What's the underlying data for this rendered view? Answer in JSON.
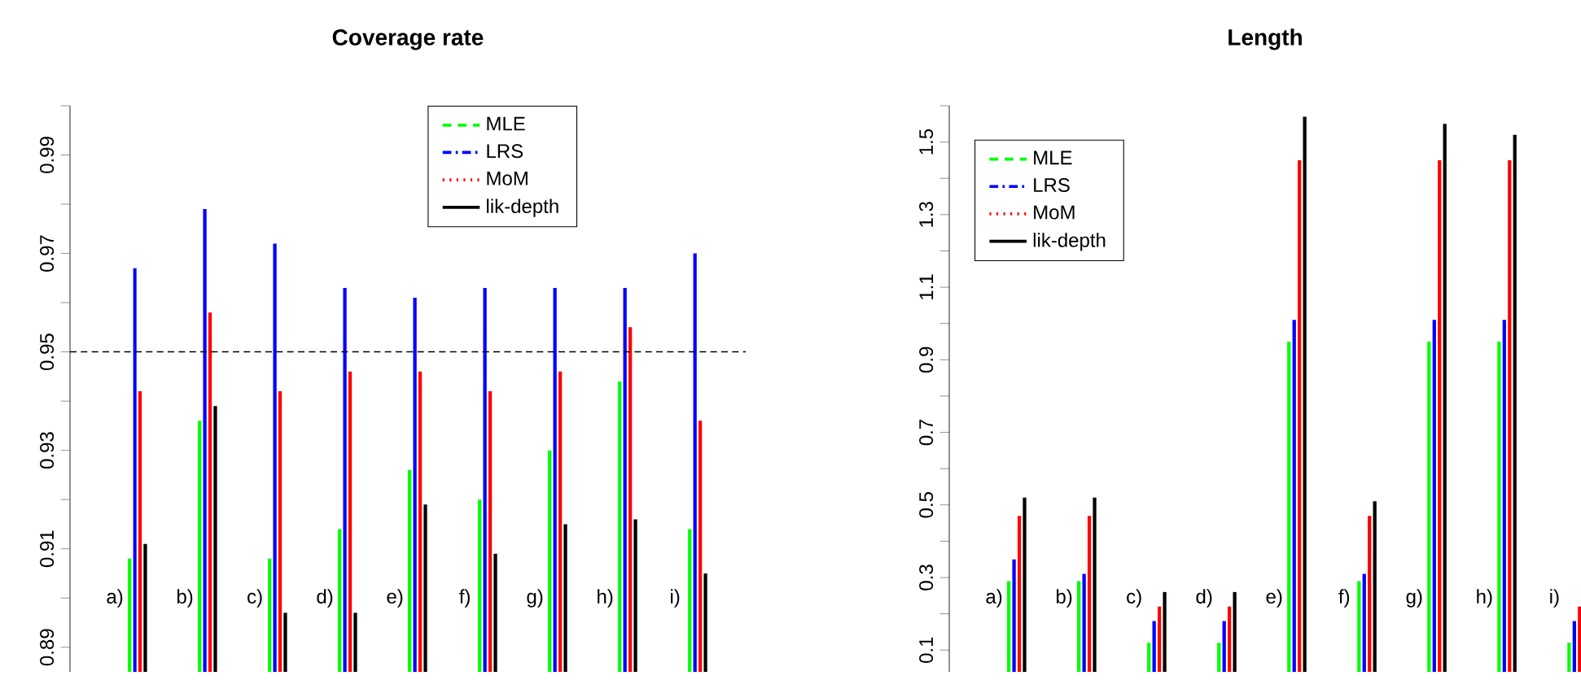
{
  "chart_data": [
    {
      "type": "bar",
      "title": "Coverage rate",
      "categories": [
        "a)",
        "b)",
        "c)",
        "d)",
        "e)",
        "f)",
        "g)",
        "h)",
        "i)"
      ],
      "series": [
        {
          "name": "MLE",
          "color": "#00ff00",
          "line_style": "dashed",
          "values": [
            0.908,
            0.936,
            0.908,
            0.914,
            0.926,
            0.92,
            0.93,
            0.944,
            0.914
          ]
        },
        {
          "name": "LRS",
          "color": "#0000ff",
          "line_style": "dashdot",
          "values": [
            0.967,
            0.979,
            0.972,
            0.963,
            0.961,
            0.963,
            0.963,
            0.963,
            0.97
          ]
        },
        {
          "name": "MoM",
          "color": "#ff0000",
          "line_style": "dotted",
          "values": [
            0.942,
            0.958,
            0.942,
            0.946,
            0.946,
            0.942,
            0.946,
            0.955,
            0.936
          ]
        },
        {
          "name": "lik-depth",
          "color": "#000000",
          "line_style": "solid",
          "values": [
            0.911,
            0.939,
            0.897,
            0.897,
            0.919,
            0.909,
            0.915,
            0.916,
            0.905
          ]
        }
      ],
      "ylim": [
        0.885,
        1.0
      ],
      "yticks": [
        0.89,
        {
          "value": 0.9,
          "label": null
        },
        0.91,
        {
          "value": 0.92,
          "label": null
        },
        0.93,
        {
          "value": 0.94,
          "label": null
        },
        0.95,
        {
          "value": 0.96,
          "label": null
        },
        0.97,
        {
          "value": 0.98,
          "label": null
        },
        0.99,
        {
          "value": 1.0,
          "label": null
        }
      ],
      "ref_lines": [
        {
          "axis": "y",
          "value": 0.95,
          "color": "#000000",
          "line_style": "dashed"
        }
      ],
      "legend": "top"
    },
    {
      "type": "bar",
      "title": "Length",
      "categories": [
        "a)",
        "b)",
        "c)",
        "d)",
        "e)",
        "f)",
        "g)",
        "h)",
        "i)"
      ],
      "series": [
        {
          "name": "MLE",
          "color": "#00ff00",
          "line_style": "dashed",
          "values": [
            0.29,
            0.29,
            0.12,
            0.12,
            0.95,
            0.29,
            0.95,
            0.95,
            0.12
          ]
        },
        {
          "name": "LRS",
          "color": "#0000ff",
          "line_style": "dashdot",
          "values": [
            0.35,
            0.31,
            0.18,
            0.18,
            1.01,
            0.31,
            1.01,
            1.01,
            0.18
          ]
        },
        {
          "name": "MoM",
          "color": "#ff0000",
          "line_style": "dotted",
          "values": [
            0.47,
            0.47,
            0.22,
            0.22,
            1.45,
            0.47,
            1.45,
            1.45,
            0.22
          ]
        },
        {
          "name": "lik-depth",
          "color": "#000000",
          "line_style": "solid",
          "values": [
            0.52,
            0.52,
            0.26,
            0.26,
            1.57,
            0.51,
            1.55,
            1.52,
            null
          ]
        }
      ],
      "ylim": [
        0.04,
        1.6
      ],
      "yticks": [
        0.1,
        {
          "value": 0.2,
          "label": null
        },
        0.3,
        {
          "value": 0.4,
          "label": null
        },
        0.5,
        {
          "value": 0.6,
          "label": null
        },
        0.7,
        {
          "value": 0.8,
          "label": null
        },
        0.9,
        {
          "value": 1.0,
          "label": null
        },
        1.1,
        {
          "value": 1.2,
          "label": null
        },
        1.3,
        {
          "value": 1.4,
          "label": null
        },
        1.5,
        {
          "value": 1.6,
          "label": null
        }
      ],
      "legend": "top left"
    }
  ]
}
